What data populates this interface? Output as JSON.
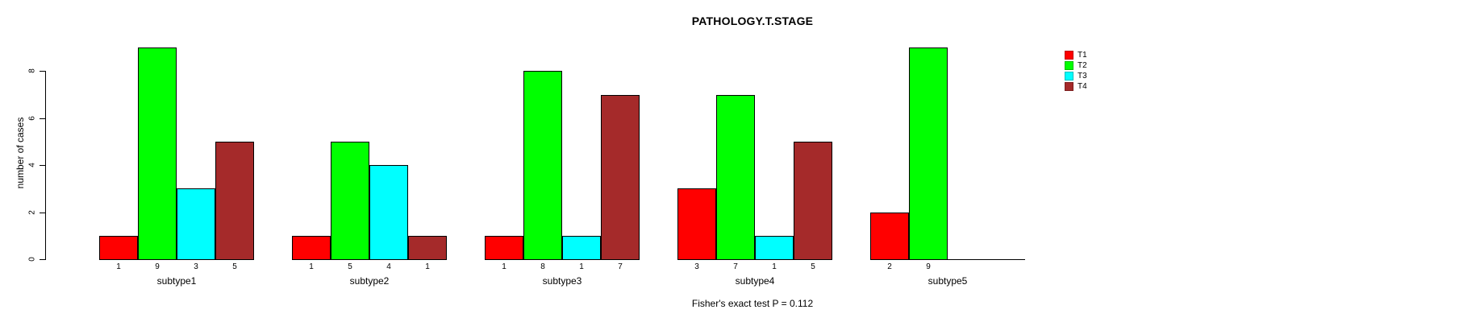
{
  "chart_data": {
    "type": "bar",
    "title": "PATHOLOGY.T.STAGE",
    "ylabel": "number of cases",
    "xlabel": "",
    "caption": "Fisher's exact test P = 0.112",
    "categories": [
      "subtype1",
      "subtype2",
      "subtype3",
      "subtype4",
      "subtype5"
    ],
    "series": [
      {
        "name": "T1",
        "color": "#ff0000",
        "values": [
          1,
          1,
          1,
          3,
          2
        ]
      },
      {
        "name": "T2",
        "color": "#00ff00",
        "values": [
          9,
          5,
          8,
          7,
          9
        ]
      },
      {
        "name": "T3",
        "color": "#00ffff",
        "values": [
          3,
          4,
          1,
          1,
          0
        ]
      },
      {
        "name": "T4",
        "color": "#a52a2a",
        "values": [
          5,
          1,
          7,
          5,
          0
        ]
      }
    ],
    "bar_value_labels": [
      [
        "1",
        "9",
        "3",
        "5"
      ],
      [
        "1",
        "5",
        "4",
        "1"
      ],
      [
        "1",
        "8",
        "1",
        "7"
      ],
      [
        "3",
        "7",
        "1",
        "5"
      ],
      [
        "2",
        "9",
        "",
        ""
      ]
    ],
    "yticks": [
      0,
      2,
      4,
      6,
      8
    ],
    "ylim": [
      0,
      9
    ],
    "grid": false,
    "legend_position": "right",
    "legend_entries": [
      "T1",
      "T2",
      "T3",
      "T4"
    ]
  }
}
